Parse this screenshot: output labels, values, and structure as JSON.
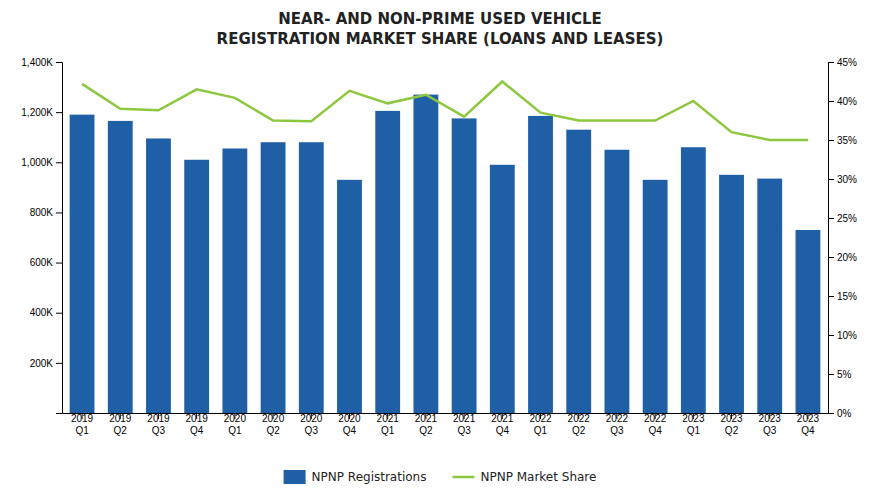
{
  "chart_data": {
    "type": "bar",
    "title": "NEAR- AND NON-PRIME USED VEHICLE\nREGISTRATION MARKET SHARE (LOANS AND LEASES)",
    "categories": [
      "2019\nQ1",
      "2019\nQ2",
      "2019\nQ3",
      "2019\nQ4",
      "2020\nQ1",
      "2020\nQ2",
      "2020\nQ3",
      "2020\nQ4",
      "2021\nQ1",
      "2021\nQ2",
      "2021\nQ3",
      "2021\nQ4",
      "2022\nQ1",
      "2022\nQ2",
      "2022\nQ3",
      "2022\nQ4",
      "2023\nQ1",
      "2023\nQ2",
      "2023\nQ3",
      "2023\nQ4"
    ],
    "series": [
      {
        "name": "NPNP Registrations",
        "type": "bar",
        "color": "#1f5fa6",
        "values": [
          1190000,
          1165000,
          1095000,
          1010000,
          1055000,
          1080000,
          1080000,
          930000,
          1205000,
          1270000,
          1175000,
          990000,
          1185000,
          1130000,
          1050000,
          930000,
          1060000,
          950000,
          935000,
          730000
        ]
      },
      {
        "name": "NPNP Market Share",
        "type": "line",
        "color": "#8dc63f",
        "axis": "y2",
        "values": [
          0.422,
          0.39,
          0.388,
          0.415,
          0.404,
          0.375,
          0.374,
          0.413,
          0.397,
          0.408,
          0.38,
          0.425,
          0.385,
          0.375,
          0.375,
          0.375,
          0.4,
          0.36,
          0.35,
          0.35
        ]
      }
    ],
    "ylim": [
      0,
      1400000
    ],
    "yticks": [
      {
        "value": 200000,
        "label": "200K"
      },
      {
        "value": 400000,
        "label": "400K"
      },
      {
        "value": 600000,
        "label": "600K"
      },
      {
        "value": 800000,
        "label": "800K"
      },
      {
        "value": 1000000,
        "label": "1,000K"
      },
      {
        "value": 1200000,
        "label": "1,200K"
      },
      {
        "value": 1400000,
        "label": "1,400K"
      }
    ],
    "y2lim": [
      0,
      0.45
    ],
    "y2ticks": [
      {
        "value": 0.0,
        "label": "0%"
      },
      {
        "value": 0.05,
        "label": "5%"
      },
      {
        "value": 0.1,
        "label": "10%"
      },
      {
        "value": 0.15,
        "label": "15%"
      },
      {
        "value": 0.2,
        "label": "20%"
      },
      {
        "value": 0.25,
        "label": "25%"
      },
      {
        "value": 0.3,
        "label": "30%"
      },
      {
        "value": 0.35,
        "label": "35%"
      },
      {
        "value": 0.4,
        "label": "40%"
      },
      {
        "value": 0.45,
        "label": "45%"
      }
    ],
    "grid": false,
    "legend": "bottom"
  }
}
